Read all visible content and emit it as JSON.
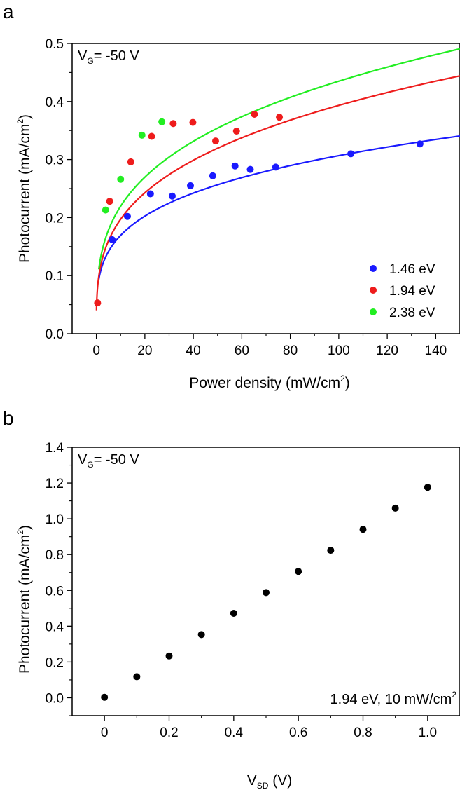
{
  "chart_data": [
    {
      "panel": "a",
      "type": "scatter",
      "annotation": {
        "main": "V",
        "sub": "G",
        "rest": "= -50 V"
      },
      "xlabel": {
        "main": "Power density (mW/cm",
        "sup": "2",
        "end": ")"
      },
      "ylabel": {
        "main": "Photocurrent (mA/cm",
        "sup": "2",
        "end": ")"
      },
      "xlim": [
        -10,
        150
      ],
      "ylim": [
        0,
        0.5
      ],
      "xticks": [
        0,
        20,
        40,
        60,
        80,
        100,
        120,
        140
      ],
      "xtick_labels": [
        "0",
        "20",
        "40",
        "60",
        "80",
        "100",
        "120",
        "140"
      ],
      "yticks": [
        0.0,
        0.1,
        0.2,
        0.3,
        0.4,
        0.5
      ],
      "ytick_labels": [
        "0.0",
        "0.1",
        "0.2",
        "0.3",
        "0.4",
        "0.5"
      ],
      "legend_position": "bottom-right",
      "series": [
        {
          "name": "1.46 eV",
          "color": "#1a1aff",
          "points": [
            [
              6.5,
              0.162
            ],
            [
              12.8,
              0.202
            ],
            [
              22.3,
              0.241
            ],
            [
              31.3,
              0.237
            ],
            [
              38.8,
              0.255
            ],
            [
              48,
              0.272
            ],
            [
              57.2,
              0.289
            ],
            [
              63.5,
              0.283
            ],
            [
              74,
              0.287
            ],
            [
              105,
              0.31
            ],
            [
              133.5,
              0.327
            ]
          ],
          "fit": {
            "a": 0.0935,
            "b": 0.258,
            "x_start": 1,
            "x_end": 150
          }
        },
        {
          "name": "1.94 eV",
          "color": "#ee1c1c",
          "points": [
            [
              0.5,
              0.053
            ],
            [
              5.5,
              0.228
            ],
            [
              14.2,
              0.296
            ],
            [
              22.8,
              0.34
            ],
            [
              31.7,
              0.362
            ],
            [
              39.8,
              0.364
            ],
            [
              49.2,
              0.332
            ],
            [
              57.8,
              0.349
            ],
            [
              65.2,
              0.378
            ],
            [
              75.5,
              0.373
            ]
          ],
          "fit": {
            "a": 0.0988,
            "b": 0.3,
            "x_start": 0.05,
            "x_end": 150
          }
        },
        {
          "name": "2.38 eV",
          "color": "#22ee22",
          "points": [
            [
              3.8,
              0.213
            ],
            [
              10,
              0.266
            ],
            [
              18.8,
              0.342
            ],
            [
              27,
              0.365
            ]
          ],
          "fit": {
            "a": 0.1108,
            "b": 0.297,
            "x_start": 1,
            "x_end": 150
          }
        }
      ]
    },
    {
      "panel": "b",
      "type": "scatter",
      "annotation": {
        "main": "V",
        "sub": "G",
        "rest": "= -50 V"
      },
      "condition": {
        "main": "1.94 eV, 10 mW/cm",
        "sup": "2"
      },
      "xlabel": {
        "main": "V",
        "sub": "SD",
        "end": " (V)"
      },
      "ylabel": {
        "main": "Photocurrent (mA/cm",
        "sup": "2",
        "end": ")"
      },
      "xlim": [
        -0.1,
        1.1
      ],
      "ylim": [
        -0.1,
        1.4
      ],
      "xticks": [
        0,
        0.2,
        0.4,
        0.6,
        0.8,
        1.0
      ],
      "xtick_labels": [
        "0",
        "0.2",
        "0.4",
        "0.6",
        "0.8",
        "1.0"
      ],
      "yticks": [
        0.0,
        0.2,
        0.4,
        0.6,
        0.8,
        1.0,
        1.2,
        1.4
      ],
      "ytick_labels": [
        "0.0",
        "0.2",
        "0.4",
        "0.6",
        "0.8",
        "1.0",
        "1.2",
        "1.4"
      ],
      "series": [
        {
          "color": "#000000",
          "points": [
            [
              0,
              0.003
            ],
            [
              0.1,
              0.118
            ],
            [
              0.2,
              0.234
            ],
            [
              0.3,
              0.353
            ],
            [
              0.4,
              0.472
            ],
            [
              0.5,
              0.588
            ],
            [
              0.6,
              0.706
            ],
            [
              0.7,
              0.824
            ],
            [
              0.8,
              0.941
            ],
            [
              0.9,
              1.06
            ],
            [
              1.0,
              1.176
            ]
          ]
        }
      ]
    }
  ]
}
